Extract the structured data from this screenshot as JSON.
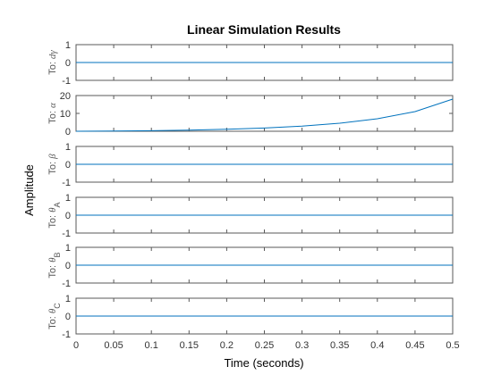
{
  "chart_data": {
    "type": "line",
    "title": "Linear Simulation Results",
    "xlabel": "Time (seconds)",
    "ylabel": "Amplitude",
    "xlim": [
      0,
      0.5
    ],
    "xticks": [
      "0",
      "0.05",
      "0.1",
      "0.15",
      "0.2",
      "0.25",
      "0.3",
      "0.35",
      "0.4",
      "0.45",
      "0.5"
    ],
    "grid": false,
    "panels": [
      {
        "label_prefix": "To: ",
        "label_sym": "dγ",
        "label_sub": "",
        "ylim": [
          -1,
          1
        ],
        "yticks": [
          "1",
          "0",
          "-1"
        ],
        "series": {
          "x": [
            0,
            0.5
          ],
          "y": [
            0,
            0
          ]
        }
      },
      {
        "label_prefix": "To: ",
        "label_sym": "α",
        "label_sub": "",
        "ylim": [
          0,
          20
        ],
        "yticks": [
          "20",
          "10",
          "0"
        ],
        "series": {
          "x": [
            0,
            0.05,
            0.1,
            0.15,
            0.2,
            0.25,
            0.3,
            0.35,
            0.4,
            0.45,
            0.5
          ],
          "y": [
            0,
            0.1,
            0.3,
            0.6,
            1.1,
            1.8,
            2.9,
            4.5,
            7.0,
            11.0,
            18.0
          ]
        }
      },
      {
        "label_prefix": "To: ",
        "label_sym": "β",
        "label_sub": "",
        "ylim": [
          -1,
          1
        ],
        "yticks": [
          "1",
          "0",
          "-1"
        ],
        "series": {
          "x": [
            0,
            0.5
          ],
          "y": [
            0,
            0
          ]
        }
      },
      {
        "label_prefix": "To: ",
        "label_sym": "θ",
        "label_sub": "A",
        "ylim": [
          -1,
          1
        ],
        "yticks": [
          "1",
          "0",
          "-1"
        ],
        "series": {
          "x": [
            0,
            0.5
          ],
          "y": [
            0,
            0
          ]
        }
      },
      {
        "label_prefix": "To: ",
        "label_sym": "θ",
        "label_sub": "B",
        "ylim": [
          -1,
          1
        ],
        "yticks": [
          "1",
          "0",
          "-1"
        ],
        "series": {
          "x": [
            0,
            0.5
          ],
          "y": [
            0,
            0
          ]
        }
      },
      {
        "label_prefix": "To: ",
        "label_sym": "θ",
        "label_sub": "C",
        "ylim": [
          -1,
          1
        ],
        "yticks": [
          "1",
          "0",
          "-1"
        ],
        "series": {
          "x": [
            0,
            0.5
          ],
          "y": [
            0,
            0
          ]
        }
      }
    ]
  },
  "colors": {
    "series": "#0072bd",
    "axes": "#595959",
    "background": "#ffffff"
  }
}
